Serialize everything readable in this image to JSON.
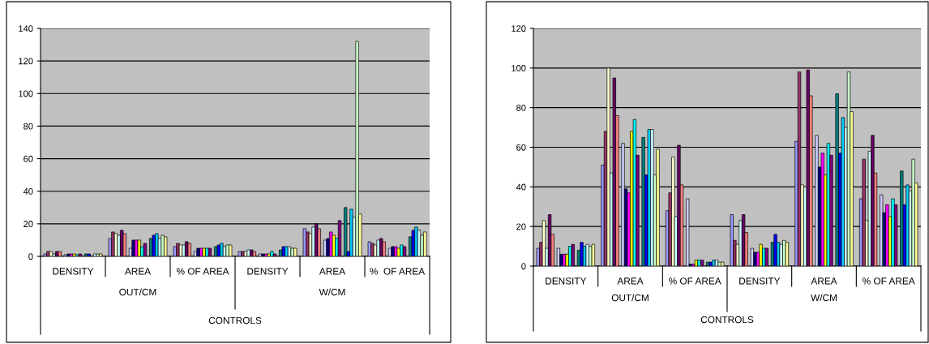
{
  "chart_data": [
    {
      "type": "bar",
      "categories": [
        "DENSITY",
        "AREA",
        "% OF AREA",
        "DENSITY",
        "AREA",
        "%  OF AREA"
      ],
      "annotations": [
        "OUT/CM",
        "W/CM",
        "CONTROLS"
      ],
      "ylim": [
        0,
        140
      ],
      "yticks": [
        0,
        20,
        40,
        60,
        80,
        100,
        120,
        140
      ],
      "grid": "y",
      "legend": false,
      "series": [
        {
          "color": "#9999ff",
          "values": [
            1.5,
            11,
            6,
            3,
            17,
            9
          ]
        },
        {
          "color": "#993366",
          "values": [
            3,
            15,
            8,
            3,
            15,
            8
          ]
        },
        {
          "color": "#ffffcc",
          "values": [
            3,
            14,
            7,
            3,
            14,
            7
          ]
        },
        {
          "color": "#ccffff",
          "values": [
            1.5,
            13,
            7,
            4,
            18,
            10
          ]
        },
        {
          "color": "#660066",
          "values": [
            3,
            16,
            9,
            4,
            20,
            11
          ]
        },
        {
          "color": "#ff8080",
          "values": [
            3,
            14,
            8,
            3,
            17,
            9
          ]
        },
        {
          "values": [
            null,
            null,
            null,
            null,
            null,
            null
          ]
        },
        {
          "color": "#ccccff",
          "values": [
            1,
            5,
            3,
            1.5,
            10,
            5
          ]
        },
        {
          "color": "#000080",
          "values": [
            1.5,
            10,
            5,
            1.5,
            11,
            6
          ]
        },
        {
          "color": "#ff00ff",
          "values": [
            1.5,
            10,
            5,
            1.5,
            15,
            6
          ]
        },
        {
          "color": "#ffff00",
          "values": [
            1.5,
            10,
            5,
            1.5,
            13,
            5
          ]
        },
        {
          "color": "#00ffff",
          "values": [
            1,
            6,
            5,
            3,
            11,
            7
          ]
        },
        {
          "color": "#800080",
          "values": [
            1.5,
            8,
            5,
            1.5,
            22,
            6
          ]
        },
        {
          "values": [
            null,
            null,
            null,
            null,
            null,
            null
          ]
        },
        {
          "color": "#008080",
          "values": [
            1.5,
            11,
            6,
            4,
            30,
            12
          ]
        },
        {
          "color": "#0000ff",
          "values": [
            1.5,
            13,
            7,
            6,
            3,
            16
          ]
        },
        {
          "color": "#00ccff",
          "values": [
            null,
            14,
            8,
            6,
            29,
            18
          ]
        },
        {
          "color": "#ccffff",
          "values": [
            1.5,
            11,
            6,
            6,
            24,
            16
          ]
        },
        {
          "color": "#ccffcc",
          "values": [
            1.5,
            13,
            7,
            5,
            132,
            13
          ]
        },
        {
          "color": "#ffff99",
          "values": [
            1.5,
            12,
            7,
            5,
            26,
            15
          ]
        }
      ]
    },
    {
      "type": "bar",
      "categories": [
        "DENSITY",
        "AREA",
        "% OF AREA",
        "DENSITY",
        "AREA",
        "% OF AREA"
      ],
      "annotations": [
        "OUT/CM",
        "W/CM",
        "CONTROLS"
      ],
      "ylim": [
        0,
        120
      ],
      "yticks": [
        0,
        20,
        40,
        60,
        80,
        100,
        120
      ],
      "grid": "y",
      "legend": false,
      "series": [
        {
          "color": "#9999ff",
          "values": [
            9,
            51,
            28,
            26,
            63,
            34
          ]
        },
        {
          "color": "#993366",
          "values": [
            12,
            68,
            37,
            13,
            98,
            54
          ]
        },
        {
          "color": "#ffffcc",
          "values": [
            23,
            100,
            55,
            11,
            41,
            23
          ]
        },
        {
          "color": "#ccffff",
          "values": [
            9,
            47,
            25,
            23,
            40,
            58
          ]
        },
        {
          "color": "#660066",
          "values": [
            26,
            95,
            61,
            26,
            99,
            66
          ]
        },
        {
          "color": "#ff8080",
          "values": [
            16,
            76,
            41,
            17,
            86,
            47
          ]
        },
        {
          "values": [
            null,
            null,
            null,
            null,
            null,
            null
          ]
        },
        {
          "color": "#ccccff",
          "values": [
            9,
            62,
            34,
            9,
            66,
            36
          ]
        },
        {
          "color": "#000080",
          "values": [
            6,
            39,
            1,
            7,
            50,
            27
          ]
        },
        {
          "color": "#ff00ff",
          "values": [
            6,
            37,
            1,
            7,
            57,
            31
          ]
        },
        {
          "color": "#ffff00",
          "values": [
            6,
            68,
            3,
            11,
            46,
            25
          ]
        },
        {
          "color": "#00ffff",
          "values": [
            10,
            74,
            3,
            9,
            62,
            34
          ]
        },
        {
          "color": "#800080",
          "values": [
            11,
            56,
            3,
            9,
            56,
            31
          ]
        },
        {
          "values": [
            null,
            null,
            null,
            null,
            null,
            null
          ]
        },
        {
          "color": "#008080",
          "values": [
            8,
            65,
            2,
            12,
            87,
            48
          ]
        },
        {
          "color": "#0000ff",
          "values": [
            12,
            46,
            2,
            16,
            57,
            31
          ]
        },
        {
          "color": "#00ccff",
          "values": [
            10,
            69,
            3,
            12,
            75,
            41
          ]
        },
        {
          "color": "#ccffff",
          "values": [
            11,
            69,
            3,
            11,
            70,
            38
          ]
        },
        {
          "color": "#ccffcc",
          "values": [
            10,
            46,
            2,
            13,
            98,
            54
          ]
        },
        {
          "color": "#ffff99",
          "values": [
            11,
            59,
            2,
            12,
            78,
            42
          ]
        }
      ]
    }
  ]
}
